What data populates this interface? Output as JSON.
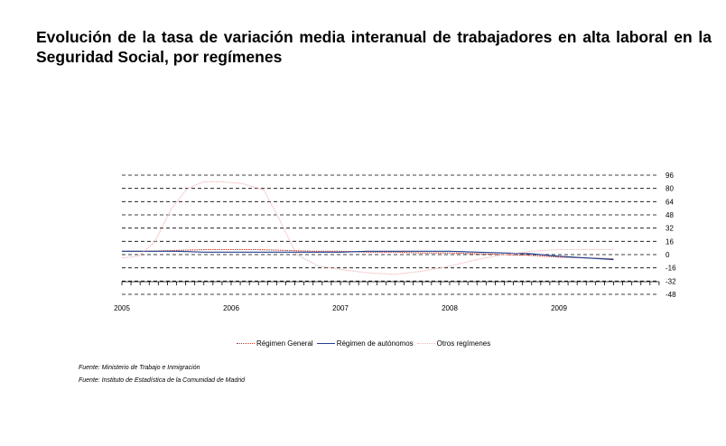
{
  "header": {
    "title": "Evolución de la tasa de variación media interanual de trabajadores en alta laboral en la Seguridad Social, por  regímenes"
  },
  "chart_data": {
    "type": "line",
    "xlim": [
      2005.0,
      2010.0
    ],
    "ylim": [
      -48,
      96
    ],
    "yticks": [
      96,
      80,
      64,
      48,
      32,
      16,
      0,
      -16,
      -32,
      -48
    ],
    "xtick_labels": [
      "2005",
      "2006",
      "2007",
      "2008",
      "2009"
    ],
    "xtick_values": [
      2005,
      2006,
      2007,
      2008,
      2009
    ],
    "grid": "horizontal-dashed",
    "legend_position": "bottom",
    "series": [
      {
        "name": "Régimen General",
        "color": "#c0392b",
        "style": "dotted",
        "x": [
          2005.0,
          2005.25,
          2005.5,
          2005.75,
          2006.0,
          2006.25,
          2006.5,
          2006.75,
          2007.0,
          2007.25,
          2007.5,
          2007.75,
          2008.0,
          2008.25,
          2008.5,
          2008.75,
          2009.0,
          2009.25,
          2009.5
        ],
        "y": [
          4,
          4,
          5,
          6,
          6,
          6,
          5,
          4,
          4,
          3,
          3,
          2,
          2,
          1,
          0,
          -1,
          -3,
          -4,
          -5
        ]
      },
      {
        "name": "Régimen de autónomos",
        "color": "#1f3f8f",
        "style": "solid",
        "x": [
          2005.0,
          2005.25,
          2005.5,
          2005.75,
          2006.0,
          2006.25,
          2006.5,
          2006.75,
          2007.0,
          2007.25,
          2007.5,
          2007.75,
          2008.0,
          2008.25,
          2008.5,
          2008.75,
          2009.0,
          2009.25,
          2009.5
        ],
        "y": [
          4,
          4,
          4,
          3,
          3,
          3,
          3,
          3,
          3,
          4,
          4,
          4,
          4,
          3,
          2,
          1,
          -2,
          -4,
          -6
        ]
      },
      {
        "name": "Otros regímenes",
        "color": "#f4b8b8",
        "style": "dotted",
        "x": [
          2005.0,
          2005.15,
          2005.3,
          2005.45,
          2005.6,
          2005.75,
          2005.9,
          2006.1,
          2006.3,
          2006.45,
          2006.6,
          2006.8,
          2007.0,
          2007.25,
          2007.5,
          2007.75,
          2008.0,
          2008.25,
          2008.5,
          2008.75,
          2009.0,
          2009.25,
          2009.5
        ],
        "y": [
          -4,
          -2,
          15,
          55,
          80,
          88,
          88,
          86,
          78,
          40,
          0,
          -14,
          -18,
          -22,
          -24,
          -20,
          -14,
          -6,
          0,
          4,
          6,
          6,
          6
        ]
      }
    ]
  },
  "sources": [
    "Fuente: Ministerio de Trabajo e Inmigración",
    "Fuente: Instituto de Estadística de la Comunidad de Madrid"
  ]
}
